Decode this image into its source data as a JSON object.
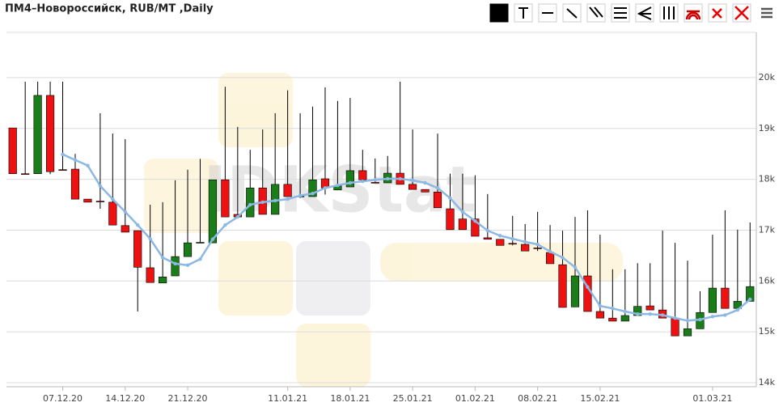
{
  "chart_data": {
    "type": "candlestick",
    "title": "ПМ4–Новороссийск, RUB/MT ,Daily",
    "watermark": "IDKStat",
    "categories": [
      null,
      null,
      null,
      null,
      "07.12.20",
      null,
      null,
      null,
      null,
      "14.12.20",
      null,
      null,
      null,
      null,
      "21.12.20",
      null,
      null,
      null,
      null,
      null,
      null,
      null,
      "11.01.21",
      null,
      null,
      null,
      null,
      "18.01.21",
      null,
      null,
      null,
      null,
      "25.01.21",
      null,
      null,
      null,
      null,
      "01.02.21",
      null,
      null,
      null,
      null,
      "08.02.21",
      null,
      null,
      null,
      null,
      "15.02.21",
      null,
      null,
      null,
      null,
      null,
      null,
      null,
      null,
      "01.03.21",
      null,
      null,
      null
    ],
    "open": [
      19010,
      18110,
      18110,
      19650,
      18190,
      18200,
      17610,
      17570,
      17550,
      17090,
      16990,
      16260,
      15960,
      16100,
      16480,
      16750,
      16750,
      17990,
      17310,
      17260,
      17830,
      17310,
      17900,
      17660,
      17660,
      18010,
      17790,
      17850,
      18170,
      17940,
      17930,
      18120,
      17900,
      17800,
      17750,
      17420,
      17220,
      17220,
      16850,
      16820,
      16740,
      16720,
      16650,
      16560,
      16320,
      15490,
      16100,
      15400,
      15270,
      15210,
      15320,
      15510,
      15430,
      15270,
      14920,
      15060,
      15380,
      15860,
      15460,
      15600
    ],
    "high": [
      19010,
      19920,
      19920,
      19920,
      19920,
      18500,
      17610,
      19300,
      18900,
      18790,
      16990,
      17500,
      17550,
      17980,
      18190,
      18400,
      17990,
      19820,
      19030,
      18580,
      18980,
      19300,
      19750,
      19300,
      19430,
      19810,
      19540,
      19600,
      18580,
      18410,
      18460,
      19920,
      18980,
      17800,
      18900,
      18110,
      18110,
      18080,
      17710,
      16820,
      17280,
      17120,
      17360,
      17100,
      16990,
      17260,
      17390,
      16910,
      16230,
      16230,
      16350,
      16350,
      16990,
      16750,
      16400,
      15800,
      16910,
      17390,
      17010,
      17150
    ],
    "low": [
      18110,
      18110,
      18110,
      18100,
      18180,
      17610,
      17550,
      17420,
      17100,
      16960,
      15400,
      15970,
      15960,
      16100,
      16480,
      16750,
      16750,
      17260,
      17260,
      17260,
      17310,
      17310,
      17660,
      17630,
      17660,
      17700,
      17790,
      17850,
      17990,
      17930,
      17930,
      17900,
      17800,
      17750,
      17440,
      17010,
      17010,
      16880,
      16820,
      16700,
      16700,
      16590,
      16590,
      16340,
      15480,
      15490,
      15400,
      15270,
      15210,
      15210,
      15320,
      15430,
      15270,
      14920,
      14920,
      15060,
      15380,
      15460,
      15460,
      15600
    ],
    "close": [
      18110,
      18100,
      19650,
      18150,
      18180,
      17610,
      17550,
      17560,
      17100,
      16960,
      16270,
      15970,
      16080,
      16480,
      16750,
      16760,
      17990,
      17260,
      17260,
      17830,
      17310,
      17900,
      17660,
      17670,
      17990,
      17830,
      17870,
      18170,
      17990,
      17930,
      18120,
      17900,
      17800,
      17750,
      17440,
      17010,
      17010,
      16880,
      16820,
      16700,
      16730,
      16590,
      16640,
      16340,
      15480,
      16100,
      15400,
      15270,
      15210,
      15320,
      15500,
      15430,
      15270,
      14920,
      15060,
      15380,
      15860,
      15460,
      15600,
      15890
    ],
    "up_color": "#1a7d1a",
    "down_color": "#ee1111",
    "moving_average": {
      "color": "#8cb8e4",
      "values": [
        null,
        null,
        null,
        null,
        18490,
        18380,
        18270,
        17870,
        17610,
        17360,
        17100,
        16830,
        16460,
        16340,
        16310,
        16430,
        16820,
        17100,
        17260,
        17500,
        17550,
        17580,
        17610,
        17680,
        17720,
        17830,
        17880,
        17930,
        17960,
        17990,
        18010,
        18010,
        17980,
        17930,
        17830,
        17630,
        17360,
        17180,
        16990,
        16890,
        16830,
        16770,
        16720,
        16580,
        16460,
        16270,
        15880,
        15510,
        15460,
        15400,
        15350,
        15350,
        15330,
        15270,
        15220,
        15240,
        15300,
        15330,
        15430,
        15640
      ]
    },
    "ylim": [
      13920,
      20890
    ],
    "yticks": [
      {
        "value": 14000,
        "label": "14k"
      },
      {
        "value": 15000,
        "label": "15k"
      },
      {
        "value": 16000,
        "label": "16k"
      },
      {
        "value": 17000,
        "label": "17k"
      },
      {
        "value": 18000,
        "label": "18k"
      },
      {
        "value": 19000,
        "label": "19k"
      },
      {
        "value": 20000,
        "label": "20k"
      }
    ],
    "grid": true
  }
}
